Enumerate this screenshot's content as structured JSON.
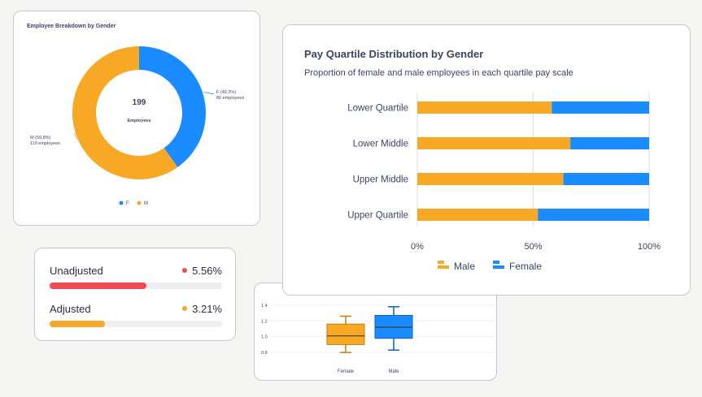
{
  "chart_data": [
    {
      "type": "pie",
      "title": "Employee Breakdown by Gender",
      "center_value": "199",
      "center_label": "Employees",
      "categories": [
        "F",
        "M"
      ],
      "values": [
        80,
        119
      ],
      "slice_labels": [
        {
          "line1": "F (40.2%)",
          "line2": "80 employees"
        },
        {
          "line1": "M (59.8%)",
          "line2": "119 employees"
        }
      ],
      "colors": [
        "#1a8cff",
        "#f7a824"
      ],
      "legend": "bottom"
    },
    {
      "type": "bar",
      "title": "Pay Quartile Distribution by Gender",
      "subtitle": "Proportion of female and male employees in each quartile pay scale",
      "categories": [
        "Lower Quartile",
        "Lower Middle",
        "Upper Middle",
        "Upper Quartile"
      ],
      "series": [
        {
          "name": "Male",
          "values": [
            58,
            66,
            63,
            52
          ],
          "color": "#f7a824"
        },
        {
          "name": "Female",
          "values": [
            42,
            34,
            37,
            48
          ],
          "color": "#1a8cff"
        }
      ],
      "stacked": true,
      "orientation": "horizontal",
      "xlim": [
        0,
        100
      ],
      "xticks": [
        "0%",
        "50%",
        "100%"
      ],
      "legend": "bottom",
      "grid": true
    },
    {
      "type": "bar",
      "title": "",
      "categories": [
        "Unadjusted",
        "Adjusted"
      ],
      "values": [
        5.56,
        3.21
      ],
      "value_labels": [
        "5.56%",
        "3.21%"
      ],
      "fill_fraction": [
        0.56,
        0.32
      ],
      "colors": [
        "#f04a52",
        "#f7a824"
      ]
    },
    {
      "type": "box",
      "title": "",
      "categories": [
        "Female",
        "Male"
      ],
      "boxes": [
        {
          "min": 0.8,
          "q1": 0.9,
          "median": 1.01,
          "q3": 1.16,
          "max": 1.26,
          "color": "#f7a824",
          "stroke": "#c97d0c"
        },
        {
          "min": 0.83,
          "q1": 0.98,
          "median": 1.12,
          "q3": 1.27,
          "max": 1.38,
          "color": "#1a8cff",
          "stroke": "#0d5fb8"
        }
      ],
      "ylim": [
        0.75,
        1.45
      ],
      "yticks": [
        "0.8",
        "1.0",
        "1.2",
        "1.4"
      ],
      "grid": true
    }
  ]
}
